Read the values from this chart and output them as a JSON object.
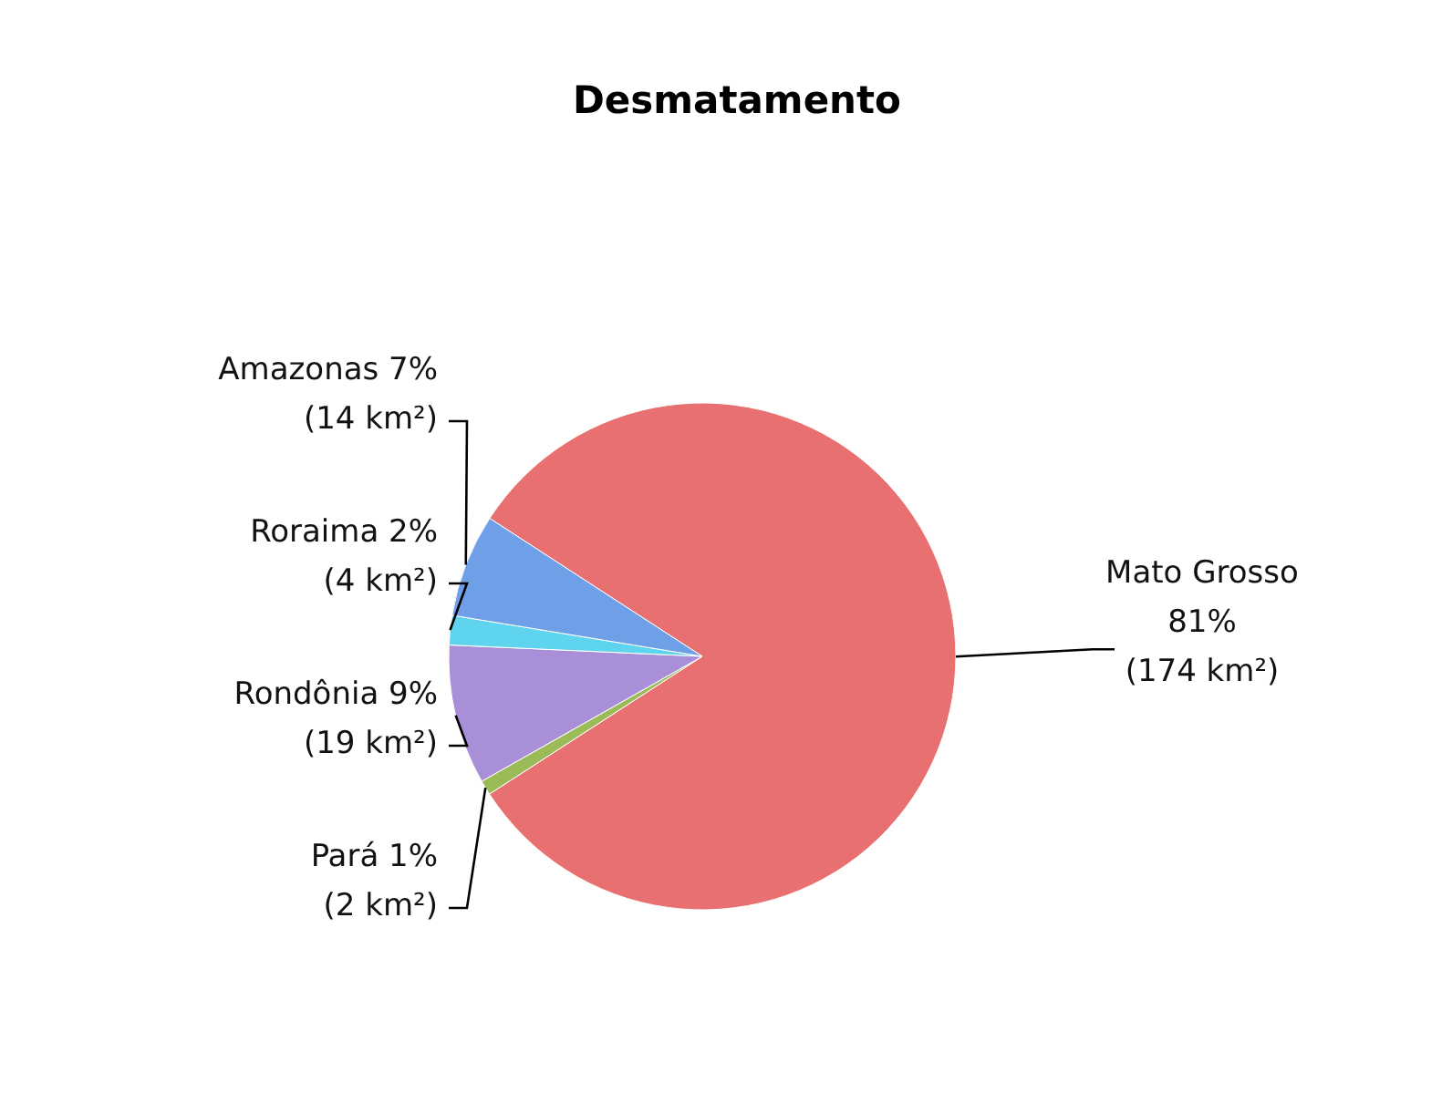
{
  "chart_data": {
    "type": "pie",
    "title": "Desmatamento",
    "categories": [
      "Mato Grosso",
      "Pará",
      "Rondônia",
      "Roraima",
      "Amazonas"
    ],
    "values": [
      174,
      2,
      19,
      4,
      14
    ],
    "value_labels": [
      "81%\n(174 km²)",
      "1%\n(2 km²)",
      "9%\n(19 km²)",
      "2%\n(4 km²)",
      "7%\n(14 km²)"
    ],
    "colors": [
      "#e87070",
      "#9bbb59",
      "#a98fd8",
      "#5fd4ee",
      "#6f9fe6"
    ],
    "data_labels": true
  }
}
